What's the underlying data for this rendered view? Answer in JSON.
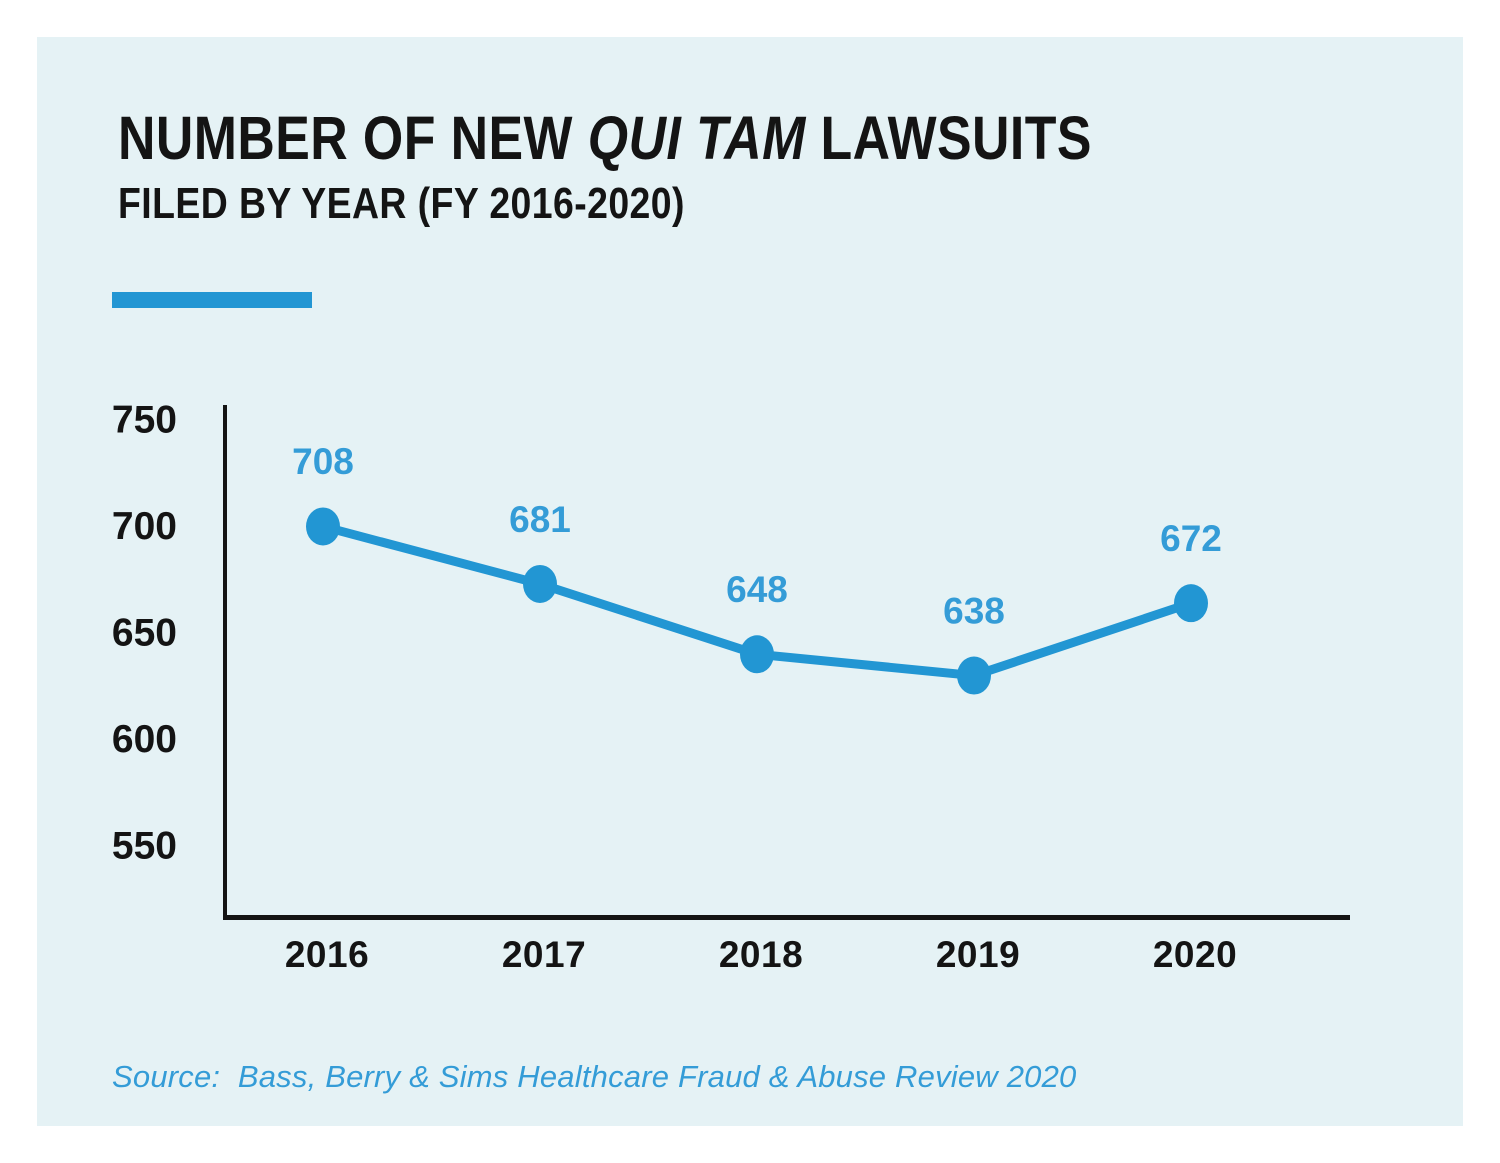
{
  "card": {
    "title_prefix": "NUMBER OF NEW ",
    "title_italic": "QUI TAM",
    "title_suffix": " LAWSUITS",
    "subtitle": "FILED BY YEAR (FY 2016-2020)",
    "source": "Source:  Bass, Berry & Sims Healthcare Fraud & Abuse Review 2020"
  },
  "colors": {
    "accent": "#2296d3",
    "label_blue": "#349cd7",
    "card_bg": "#e5f2f5",
    "text_dark": "#141414",
    "page_bg": "#ffffff"
  },
  "chart_data": {
    "type": "line",
    "title": "Number of new qui tam lawsuits filed by year (FY 2016-2020)",
    "categories": [
      "2016",
      "2017",
      "2018",
      "2019",
      "2020"
    ],
    "series": [
      {
        "name": "New qui tam lawsuits filed",
        "values": [
          708,
          681,
          648,
          638,
          672
        ]
      }
    ],
    "point_labels": [
      708,
      681,
      648,
      638,
      672
    ],
    "yticks": [
      750,
      700,
      650,
      600,
      550
    ],
    "ylim": [
      550,
      750
    ],
    "xlabel": "",
    "ylabel": "",
    "grid": false,
    "legend_position": "none"
  }
}
